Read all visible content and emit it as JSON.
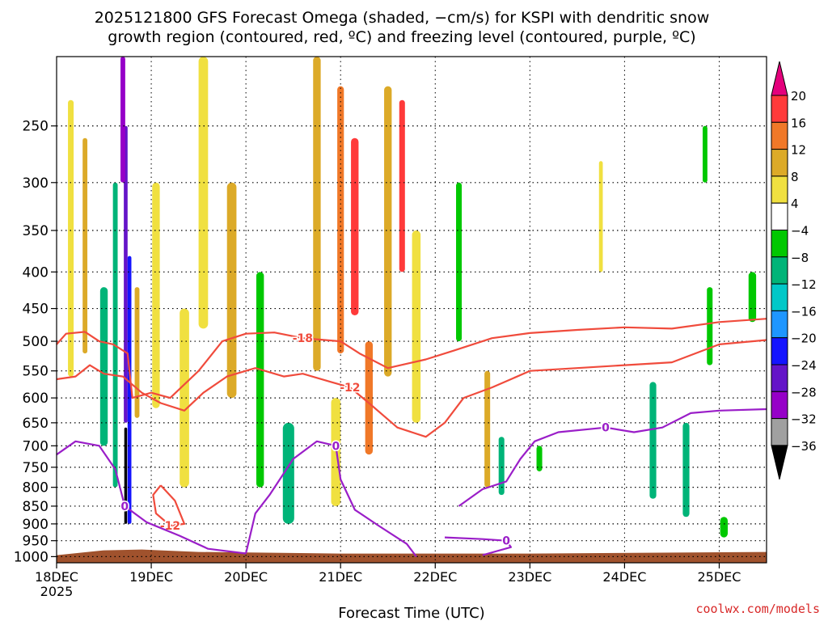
{
  "chart_data": {
    "type": "heatmap",
    "title_line1": "2025121800 GFS Forecast Omega (shaded, −cm/s) for KSPI with dendritic snow",
    "title_line2": "growth region (contoured, red, ºC) and freezing level (contoured, purple, ºC)",
    "xlabel": "Forecast Time (UTC)",
    "ylabel": "",
    "credit": "coolwx.com/models",
    "x_ticks": [
      "18DEC",
      "19DEC",
      "20DEC",
      "21DEC",
      "22DEC",
      "23DEC",
      "24DEC",
      "25DEC"
    ],
    "x_year": "2025",
    "x_range_days": [
      0,
      7.5
    ],
    "y_ticks": [
      250,
      300,
      350,
      400,
      450,
      500,
      550,
      600,
      650,
      700,
      750,
      800,
      850,
      900,
      950,
      1000
    ],
    "y_scale": "log-pressure",
    "y_range": [
      200,
      1020
    ],
    "grid": true,
    "colorbar": {
      "labels": [
        "20",
        "16",
        "12",
        "8",
        "4",
        "−4",
        "−8",
        "−12",
        "−16",
        "−20",
        "−24",
        "−28",
        "−32",
        "−36"
      ],
      "colors": [
        "#e4007c",
        "#ff3a3a",
        "#f07828",
        "#dcaa28",
        "#f0e040",
        "#ffffff",
        "#00c800",
        "#00b478",
        "#00c8c8",
        "#1e96ff",
        "#1414ff",
        "#6414c8",
        "#9600c8",
        "#a0a0a0",
        "#000000"
      ]
    },
    "omega_cells": [
      {
        "t": 0.15,
        "p0": 230,
        "p1": 560,
        "w": 0.06,
        "v": 6
      },
      {
        "t": 0.3,
        "p0": 260,
        "p1": 520,
        "w": 0.05,
        "v": 10
      },
      {
        "t": 0.5,
        "p0": 420,
        "p1": 700,
        "w": 0.08,
        "v": -8
      },
      {
        "t": 0.62,
        "p0": 300,
        "p1": 800,
        "w": 0.05,
        "v": -10
      },
      {
        "t": 0.73,
        "p0": 250,
        "p1": 650,
        "w": 0.04,
        "v": -26
      },
      {
        "t": 0.77,
        "p0": 380,
        "p1": 900,
        "w": 0.04,
        "v": -22
      },
      {
        "t": 0.73,
        "p0": 660,
        "p1": 900,
        "w": 0.03,
        "v": -36
      },
      {
        "t": 0.7,
        "p0": 200,
        "p1": 300,
        "w": 0.05,
        "v": -30
      },
      {
        "t": 0.85,
        "p0": 420,
        "p1": 640,
        "w": 0.05,
        "v": 9
      },
      {
        "t": 1.05,
        "p0": 300,
        "p1": 620,
        "w": 0.08,
        "v": 6
      },
      {
        "t": 1.35,
        "p0": 450,
        "p1": 800,
        "w": 0.1,
        "v": 5
      },
      {
        "t": 1.55,
        "p0": 200,
        "p1": 480,
        "w": 0.1,
        "v": 7
      },
      {
        "t": 1.85,
        "p0": 300,
        "p1": 600,
        "w": 0.1,
        "v": 10
      },
      {
        "t": 2.15,
        "p0": 400,
        "p1": 800,
        "w": 0.08,
        "v": -6
      },
      {
        "t": 2.45,
        "p0": 650,
        "p1": 900,
        "w": 0.12,
        "v": -9
      },
      {
        "t": 2.75,
        "p0": 200,
        "p1": 550,
        "w": 0.08,
        "v": 9
      },
      {
        "t": 2.95,
        "p0": 600,
        "p1": 850,
        "w": 0.1,
        "v": 6
      },
      {
        "t": 3.0,
        "p0": 220,
        "p1": 520,
        "w": 0.07,
        "v": 14
      },
      {
        "t": 3.15,
        "p0": 260,
        "p1": 460,
        "w": 0.08,
        "v": 19
      },
      {
        "t": 3.3,
        "p0": 500,
        "p1": 720,
        "w": 0.08,
        "v": 15
      },
      {
        "t": 3.5,
        "p0": 220,
        "p1": 560,
        "w": 0.08,
        "v": 10
      },
      {
        "t": 3.65,
        "p0": 230,
        "p1": 400,
        "w": 0.06,
        "v": 17
      },
      {
        "t": 3.8,
        "p0": 350,
        "p1": 650,
        "w": 0.09,
        "v": 7
      },
      {
        "t": 4.25,
        "p0": 300,
        "p1": 500,
        "w": 0.06,
        "v": -6
      },
      {
        "t": 4.55,
        "p0": 550,
        "p1": 800,
        "w": 0.06,
        "v": 9
      },
      {
        "t": 4.7,
        "p0": 680,
        "p1": 820,
        "w": 0.06,
        "v": -8
      },
      {
        "t": 5.1,
        "p0": 700,
        "p1": 760,
        "w": 0.06,
        "v": -6
      },
      {
        "t": 5.75,
        "p0": 280,
        "p1": 400,
        "w": 0.04,
        "v": 6
      },
      {
        "t": 6.3,
        "p0": 570,
        "p1": 830,
        "w": 0.07,
        "v": -10
      },
      {
        "t": 6.65,
        "p0": 650,
        "p1": 880,
        "w": 0.07,
        "v": -8
      },
      {
        "t": 6.9,
        "p0": 420,
        "p1": 540,
        "w": 0.06,
        "v": -7
      },
      {
        "t": 7.05,
        "p0": 880,
        "p1": 940,
        "w": 0.08,
        "v": -6
      },
      {
        "t": 6.85,
        "p0": 250,
        "p1": 300,
        "w": 0.05,
        "v": -6
      },
      {
        "t": 7.35,
        "p0": 400,
        "p1": 470,
        "w": 0.08,
        "v": -7
      }
    ],
    "contours": [
      {
        "label": "-18",
        "color": "red",
        "points": [
          [
            0.0,
            505
          ],
          [
            0.1,
            488
          ],
          [
            0.3,
            485
          ],
          [
            0.45,
            500
          ],
          [
            0.6,
            505
          ],
          [
            0.75,
            520
          ],
          [
            0.8,
            600
          ],
          [
            1.0,
            590
          ],
          [
            1.2,
            600
          ],
          [
            1.5,
            550
          ],
          [
            1.75,
            500
          ],
          [
            2.0,
            488
          ],
          [
            2.3,
            486
          ],
          [
            2.6,
            495
          ],
          [
            3.0,
            500
          ],
          [
            3.2,
            520
          ],
          [
            3.5,
            545
          ],
          [
            3.9,
            530
          ],
          [
            4.2,
            515
          ],
          [
            4.6,
            495
          ],
          [
            5.0,
            487
          ],
          [
            5.5,
            482
          ],
          [
            6.0,
            478
          ],
          [
            6.5,
            480
          ],
          [
            7.0,
            470
          ],
          [
            7.5,
            465
          ]
        ]
      },
      {
        "label": "-12",
        "color": "red",
        "points": [
          [
            0.0,
            565
          ],
          [
            0.2,
            560
          ],
          [
            0.35,
            540
          ],
          [
            0.5,
            555
          ],
          [
            0.7,
            560
          ],
          [
            0.9,
            590
          ],
          [
            1.1,
            610
          ],
          [
            1.35,
            625
          ],
          [
            1.55,
            590
          ],
          [
            1.8,
            560
          ],
          [
            2.1,
            545
          ],
          [
            2.4,
            560
          ],
          [
            2.6,
            555
          ],
          [
            2.9,
            570
          ],
          [
            3.1,
            580
          ],
          [
            3.3,
            610
          ],
          [
            3.6,
            660
          ],
          [
            3.9,
            680
          ],
          [
            4.1,
            650
          ],
          [
            4.3,
            600
          ],
          [
            4.6,
            580
          ],
          [
            4.8,
            565
          ],
          [
            5.0,
            550
          ],
          [
            5.5,
            545
          ],
          [
            6.0,
            540
          ],
          [
            6.5,
            535
          ],
          [
            7.0,
            505
          ],
          [
            7.5,
            498
          ]
        ]
      },
      {
        "label": "-12",
        "color": "red",
        "points": [
          [
            1.1,
            795
          ],
          [
            1.25,
            835
          ],
          [
            1.35,
            900
          ],
          [
            1.2,
            905
          ],
          [
            1.05,
            870
          ],
          [
            1.02,
            820
          ],
          [
            1.1,
            795
          ]
        ]
      },
      {
        "label": "0",
        "color": "purple",
        "points": [
          [
            0.0,
            720
          ],
          [
            0.2,
            690
          ],
          [
            0.45,
            700
          ],
          [
            0.62,
            755
          ],
          [
            0.72,
            850
          ],
          [
            0.95,
            895
          ],
          [
            1.3,
            935
          ],
          [
            1.6,
            975
          ],
          [
            2.0,
            990
          ]
        ]
      },
      {
        "label": "0",
        "color": "purple",
        "points": [
          [
            2.0,
            990
          ],
          [
            2.1,
            870
          ],
          [
            2.25,
            820
          ],
          [
            2.5,
            730
          ],
          [
            2.75,
            690
          ],
          [
            2.95,
            700
          ],
          [
            3.0,
            780
          ],
          [
            3.15,
            860
          ],
          [
            3.4,
            905
          ],
          [
            3.7,
            960
          ],
          [
            3.8,
            1000
          ]
        ]
      },
      {
        "label": "0",
        "color": "purple",
        "points": [
          [
            4.25,
            850
          ],
          [
            4.5,
            805
          ],
          [
            4.75,
            785
          ],
          [
            4.9,
            730
          ],
          [
            5.05,
            690
          ],
          [
            5.3,
            670
          ],
          [
            5.8,
            660
          ],
          [
            6.1,
            670
          ],
          [
            6.4,
            660
          ],
          [
            6.7,
            630
          ],
          [
            7.0,
            625
          ],
          [
            7.5,
            622
          ]
        ]
      },
      {
        "label": "0",
        "color": "purple",
        "points": [
          [
            4.1,
            940
          ],
          [
            4.5,
            945
          ],
          [
            4.75,
            950
          ],
          [
            4.8,
            970
          ],
          [
            4.5,
            995
          ]
        ]
      }
    ]
  }
}
